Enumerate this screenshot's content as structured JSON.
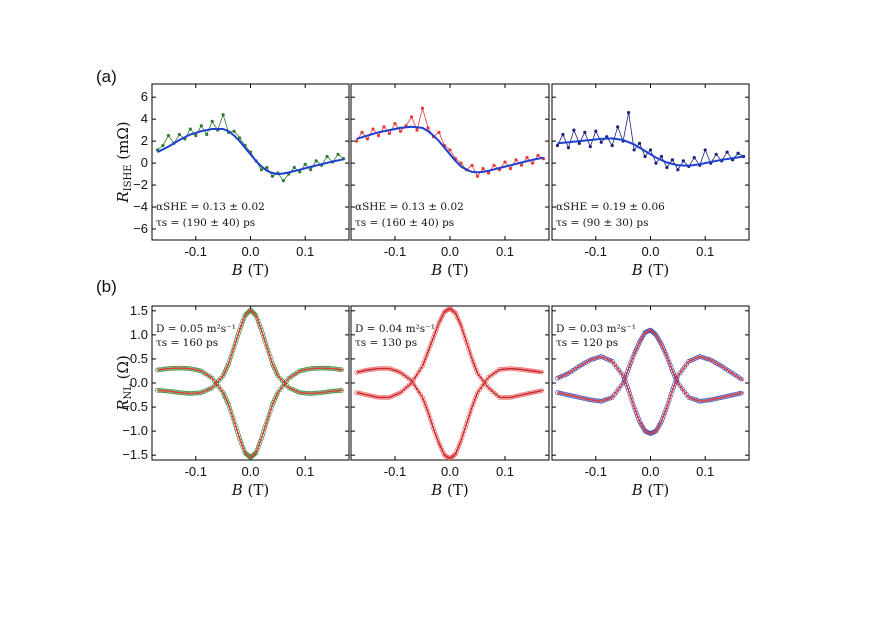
{
  "chart_data": [
    {
      "panel": "(a)",
      "type": "scatter",
      "ylabel": "R_ISHE (mΩ)",
      "ylabel_text": "R",
      "ylabel_sub": "ISHE",
      "ylabel_unit": "(mΩ)",
      "ylim": [
        -7,
        7.2
      ],
      "yticks": [
        6,
        4,
        2,
        0,
        -2,
        -4,
        -6
      ],
      "ytick_labels": [
        "6",
        "4",
        "2",
        "0",
        "−2",
        "−4",
        "−6"
      ],
      "subplots": [
        {
          "xlabel": "B (T)",
          "xlim": [
            -0.18,
            0.18
          ],
          "xticks": [
            -0.1,
            0.0,
            0.1
          ],
          "xtick_labels": [
            "-0.1",
            "0.0",
            "0.1"
          ],
          "annotation": [
            "α_SHE^Pt = 0.13 ± 0.02",
            "τ_s = (190 ± 40) ps"
          ],
          "annotation_line1": "αSHE = 0.13 ± 0.02",
          "annotation_line2": "τs = (190 ± 40) ps",
          "series": [
            {
              "kind": "data-points-and-line",
              "color": "#2e7d32",
              "x": [
                -0.17,
                -0.16,
                -0.15,
                -0.14,
                -0.13,
                -0.12,
                -0.11,
                -0.1,
                -0.09,
                -0.08,
                -0.07,
                -0.06,
                -0.05,
                -0.04,
                -0.03,
                -0.02,
                -0.01,
                0.0,
                0.01,
                0.02,
                0.03,
                0.04,
                0.05,
                0.06,
                0.07,
                0.08,
                0.09,
                0.1,
                0.11,
                0.12,
                0.13,
                0.14,
                0.15,
                0.16,
                0.17
              ],
              "y": [
                1.2,
                1.6,
                2.5,
                1.8,
                2.6,
                2.2,
                3.1,
                2.5,
                3.4,
                2.6,
                3.8,
                3.0,
                4.4,
                2.8,
                2.9,
                2.3,
                1.6,
                1.0,
                0.2,
                -0.6,
                -0.4,
                -1.2,
                -0.9,
                -1.6,
                -1.0,
                -0.4,
                -0.8,
                -0.1,
                -0.6,
                0.2,
                -0.2,
                0.6,
                0.1,
                0.8,
                0.4
              ]
            },
            {
              "kind": "fit",
              "color": "#1f3fcf",
              "x": [
                -0.17,
                -0.15,
                -0.13,
                -0.11,
                -0.09,
                -0.07,
                -0.05,
                -0.04,
                -0.03,
                -0.02,
                -0.01,
                0.0,
                0.01,
                0.02,
                0.03,
                0.04,
                0.05,
                0.06,
                0.07,
                0.09,
                0.11,
                0.13,
                0.15,
                0.17
              ],
              "y": [
                1.0,
                1.5,
                2.1,
                2.6,
                2.9,
                3.1,
                3.1,
                2.9,
                2.5,
                2.0,
                1.4,
                0.8,
                0.2,
                -0.3,
                -0.7,
                -0.9,
                -1.0,
                -0.95,
                -0.85,
                -0.6,
                -0.35,
                -0.1,
                0.15,
                0.35
              ]
            }
          ]
        },
        {
          "xlabel": "B (T)",
          "xlim": [
            -0.18,
            0.18
          ],
          "xticks": [
            -0.1,
            0.0,
            0.1
          ],
          "xtick_labels": [
            "-0.1",
            "0.0",
            "0.1"
          ],
          "annotation": [
            "α_SHE^Pt = 0.13 ± 0.02",
            "τ_s = (160 ± 40) ps"
          ],
          "annotation_line1": "αSHE = 0.13 ± 0.02",
          "annotation_line2": "τs = (160 ± 40) ps",
          "series": [
            {
              "kind": "data-points-and-line",
              "color": "#e53935",
              "x": [
                -0.17,
                -0.16,
                -0.15,
                -0.14,
                -0.13,
                -0.12,
                -0.11,
                -0.1,
                -0.09,
                -0.08,
                -0.07,
                -0.06,
                -0.05,
                -0.04,
                -0.03,
                -0.02,
                -0.01,
                0.0,
                0.01,
                0.02,
                0.03,
                0.04,
                0.05,
                0.06,
                0.07,
                0.08,
                0.09,
                0.1,
                0.11,
                0.12,
                0.13,
                0.14,
                0.15,
                0.16,
                0.17
              ],
              "y": [
                2.0,
                2.8,
                2.2,
                3.1,
                2.5,
                3.3,
                2.7,
                3.6,
                2.9,
                3.4,
                4.2,
                3.0,
                5.0,
                3.2,
                2.4,
                2.8,
                1.6,
                1.2,
                0.4,
                0.0,
                -0.6,
                -0.2,
                -1.2,
                -0.5,
                -0.9,
                -0.2,
                -0.6,
                0.1,
                -0.5,
                0.3,
                -0.2,
                0.5,
                0.0,
                0.7,
                0.4
              ]
            },
            {
              "kind": "fit",
              "color": "#1f3fcf",
              "x": [
                -0.17,
                -0.15,
                -0.13,
                -0.11,
                -0.09,
                -0.07,
                -0.05,
                -0.04,
                -0.03,
                -0.02,
                -0.01,
                0.0,
                0.01,
                0.02,
                0.03,
                0.04,
                0.05,
                0.06,
                0.07,
                0.09,
                0.11,
                0.13,
                0.15,
                0.17
              ],
              "y": [
                2.2,
                2.5,
                2.8,
                3.0,
                3.2,
                3.3,
                3.2,
                2.9,
                2.5,
                2.0,
                1.4,
                0.8,
                0.2,
                -0.3,
                -0.6,
                -0.8,
                -0.85,
                -0.8,
                -0.7,
                -0.45,
                -0.2,
                0.05,
                0.3,
                0.5
              ]
            }
          ]
        },
        {
          "xlabel": "B (T)",
          "xlim": [
            -0.18,
            0.18
          ],
          "xticks": [
            -0.1,
            0.0,
            0.1
          ],
          "xtick_labels": [
            "-0.1",
            "0.0",
            "0.1"
          ],
          "annotation": [
            "α_SHE^Pt = 0.19 ± 0.06",
            "τ_s = (90 ± 30) ps"
          ],
          "annotation_line1": "αSHE = 0.19 ± 0.06",
          "annotation_line2": "τs = (90 ± 30) ps",
          "series": [
            {
              "kind": "data-points-and-line",
              "color": "#1a237e",
              "x": [
                -0.17,
                -0.16,
                -0.15,
                -0.14,
                -0.13,
                -0.12,
                -0.11,
                -0.1,
                -0.09,
                -0.08,
                -0.07,
                -0.06,
                -0.05,
                -0.04,
                -0.03,
                -0.02,
                -0.01,
                0.0,
                0.01,
                0.02,
                0.03,
                0.04,
                0.05,
                0.06,
                0.07,
                0.08,
                0.09,
                0.1,
                0.11,
                0.12,
                0.13,
                0.14,
                0.15,
                0.16,
                0.17
              ],
              "y": [
                1.6,
                2.6,
                1.4,
                3.0,
                1.8,
                2.8,
                1.5,
                2.9,
                1.9,
                2.4,
                1.6,
                3.3,
                2.0,
                4.6,
                1.2,
                1.8,
                0.6,
                1.2,
                0.0,
                0.6,
                -0.4,
                0.3,
                -0.6,
                0.2,
                -0.3,
                0.5,
                -0.2,
                1.2,
                0.0,
                0.8,
                0.2,
                1.0,
                0.3,
                0.9,
                0.6
              ]
            },
            {
              "kind": "fit",
              "color": "#1f3fcf",
              "x": [
                -0.17,
                -0.15,
                -0.13,
                -0.11,
                -0.09,
                -0.07,
                -0.05,
                -0.03,
                -0.01,
                0.01,
                0.03,
                0.05,
                0.07,
                0.09,
                0.11,
                0.13,
                0.15,
                0.17
              ],
              "y": [
                1.8,
                1.9,
                2.0,
                2.1,
                2.2,
                2.25,
                2.1,
                1.7,
                1.1,
                0.5,
                0.05,
                -0.2,
                -0.25,
                -0.1,
                0.1,
                0.3,
                0.45,
                0.6
              ]
            }
          ]
        }
      ]
    },
    {
      "panel": "(b)",
      "type": "scatter",
      "ylabel": "R_NL (Ω)",
      "ylabel_text": "R",
      "ylabel_sub": "NL",
      "ylabel_unit": "(Ω)",
      "ylim": [
        -1.6,
        1.6
      ],
      "yticks": [
        1.5,
        1.0,
        0.5,
        0.0,
        -0.5,
        -1.0,
        -1.5
      ],
      "ytick_labels": [
        "1.5",
        "1.0",
        "0.5",
        "0.0",
        "−0.5",
        "−1.0",
        "−1.5"
      ],
      "subplots": [
        {
          "xlabel": "B (T)",
          "xlim": [
            -0.18,
            0.18
          ],
          "xticks": [
            -0.1,
            0.0,
            0.1
          ],
          "xtick_labels": [
            "-0.1",
            "0.0",
            "0.1"
          ],
          "annotation": [
            "D = 0.05 m²s⁻¹",
            "τ_s = 160 ps"
          ],
          "annotation_line1": "D = 0.05 m²s⁻¹",
          "annotation_line2": "τs = 160 ps",
          "data_color": "#3a8a3a",
          "fit_color": "#e53935",
          "series": [
            {
              "kind": "parallel",
              "x": [
                -0.17,
                -0.15,
                -0.13,
                -0.11,
                -0.09,
                -0.07,
                -0.05,
                -0.04,
                -0.03,
                -0.02,
                -0.01,
                0.0,
                0.01,
                0.02,
                0.03,
                0.04,
                0.05,
                0.07,
                0.09,
                0.11,
                0.13,
                0.15,
                0.17
              ],
              "y": [
                -0.15,
                -0.17,
                -0.2,
                -0.22,
                -0.2,
                -0.1,
                0.15,
                0.4,
                0.75,
                1.1,
                1.4,
                1.52,
                1.4,
                1.1,
                0.75,
                0.4,
                0.15,
                -0.1,
                -0.2,
                -0.22,
                -0.2,
                -0.17,
                -0.15
              ]
            },
            {
              "kind": "antiparallel",
              "x": [
                -0.17,
                -0.15,
                -0.13,
                -0.11,
                -0.09,
                -0.07,
                -0.05,
                -0.04,
                -0.03,
                -0.02,
                -0.01,
                0.0,
                0.01,
                0.02,
                0.03,
                0.04,
                0.05,
                0.07,
                0.09,
                0.11,
                0.13,
                0.15,
                0.17
              ],
              "y": [
                0.27,
                0.3,
                0.31,
                0.3,
                0.25,
                0.1,
                -0.2,
                -0.45,
                -0.8,
                -1.15,
                -1.45,
                -1.55,
                -1.45,
                -1.15,
                -0.8,
                -0.45,
                -0.2,
                0.1,
                0.25,
                0.3,
                0.31,
                0.3,
                0.27
              ]
            }
          ]
        },
        {
          "xlabel": "B (T)",
          "xlim": [
            -0.18,
            0.18
          ],
          "xticks": [
            -0.1,
            0.0,
            0.1
          ],
          "xtick_labels": [
            "-0.1",
            "0.0",
            "0.1"
          ],
          "annotation": [
            "D = 0.04 m²s⁻¹",
            "τ_s = 130 ps"
          ],
          "annotation_line1": "D = 0.04 m²s⁻¹",
          "annotation_line2": "τs = 130 ps",
          "data_color": "#f06a6a",
          "fit_color": "#c62828",
          "series": [
            {
              "kind": "parallel",
              "x": [
                -0.17,
                -0.15,
                -0.13,
                -0.11,
                -0.09,
                -0.07,
                -0.05,
                -0.04,
                -0.03,
                -0.02,
                -0.01,
                0.0,
                0.01,
                0.02,
                0.03,
                0.04,
                0.05,
                0.07,
                0.09,
                0.11,
                0.13,
                0.15,
                0.17
              ],
              "y": [
                -0.2,
                -0.25,
                -0.3,
                -0.3,
                -0.2,
                0.0,
                0.35,
                0.65,
                0.95,
                1.25,
                1.48,
                1.55,
                1.45,
                1.2,
                0.85,
                0.5,
                0.2,
                -0.1,
                -0.3,
                -0.3,
                -0.25,
                -0.2,
                -0.15
              ]
            },
            {
              "kind": "antiparallel",
              "x": [
                -0.17,
                -0.15,
                -0.13,
                -0.11,
                -0.09,
                -0.07,
                -0.05,
                -0.04,
                -0.03,
                -0.02,
                -0.01,
                0.0,
                0.01,
                0.02,
                0.03,
                0.04,
                0.05,
                0.07,
                0.09,
                0.11,
                0.13,
                0.15,
                0.17
              ],
              "y": [
                0.22,
                0.27,
                0.3,
                0.3,
                0.22,
                0.05,
                -0.3,
                -0.6,
                -0.95,
                -1.25,
                -1.5,
                -1.57,
                -1.48,
                -1.2,
                -0.85,
                -0.5,
                -0.2,
                0.12,
                0.28,
                0.3,
                0.28,
                0.25,
                0.22
              ]
            }
          ]
        },
        {
          "xlabel": "B (T)",
          "xlim": [
            -0.18,
            0.18
          ],
          "xticks": [
            -0.1,
            0.0,
            0.1
          ],
          "xtick_labels": [
            "-0.1",
            "0.0",
            "0.1"
          ],
          "annotation": [
            "D = 0.03 m²s⁻¹",
            "τ_s = 120 ps"
          ],
          "annotation_line1": "D = 0.03 m²s⁻¹",
          "annotation_line2": "τs = 120 ps",
          "data_color": "#4a4aa8",
          "fit_color": "#e53935",
          "series": [
            {
              "kind": "parallel",
              "x": [
                -0.17,
                -0.15,
                -0.13,
                -0.11,
                -0.09,
                -0.07,
                -0.05,
                -0.04,
                -0.03,
                -0.02,
                -0.01,
                0.0,
                0.01,
                0.02,
                0.03,
                0.04,
                0.05,
                0.07,
                0.09,
                0.11,
                0.13,
                0.15,
                0.17
              ],
              "y": [
                -0.2,
                -0.25,
                -0.3,
                -0.35,
                -0.38,
                -0.3,
                0.0,
                0.3,
                0.6,
                0.85,
                1.05,
                1.1,
                1.0,
                0.8,
                0.55,
                0.25,
                0.0,
                -0.3,
                -0.38,
                -0.35,
                -0.3,
                -0.25,
                -0.2
              ]
            },
            {
              "kind": "antiparallel",
              "x": [
                -0.17,
                -0.15,
                -0.13,
                -0.11,
                -0.09,
                -0.07,
                -0.05,
                -0.04,
                -0.03,
                -0.02,
                -0.01,
                0.0,
                0.01,
                0.02,
                0.03,
                0.04,
                0.05,
                0.07,
                0.09,
                0.11,
                0.13,
                0.15,
                0.17
              ],
              "y": [
                0.1,
                0.2,
                0.35,
                0.48,
                0.55,
                0.45,
                0.15,
                -0.15,
                -0.5,
                -0.8,
                -1.0,
                -1.05,
                -1.0,
                -0.8,
                -0.5,
                -0.15,
                0.15,
                0.45,
                0.55,
                0.48,
                0.35,
                0.2,
                0.05
              ]
            }
          ]
        }
      ]
    }
  ]
}
